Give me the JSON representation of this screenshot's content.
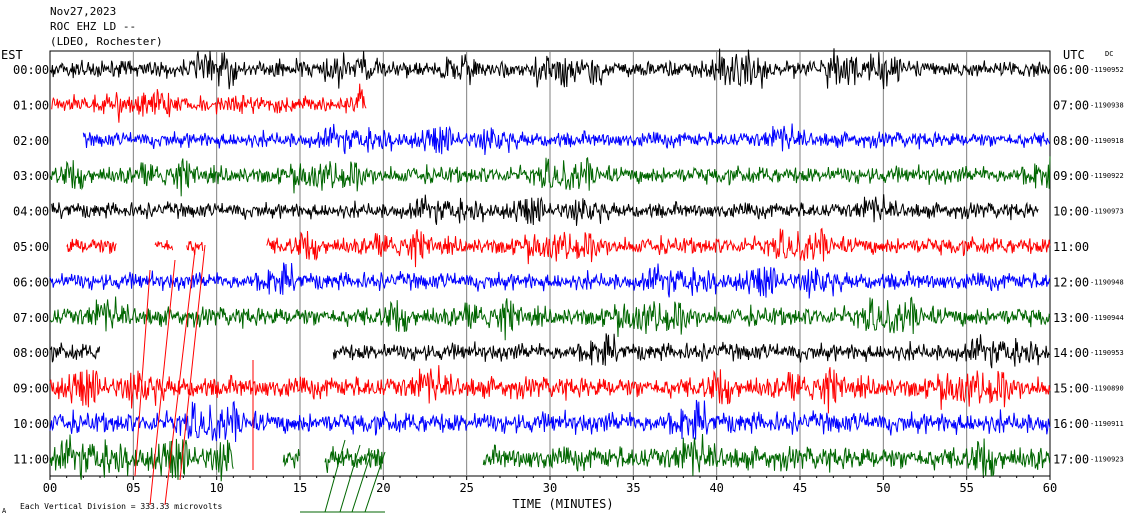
{
  "header": {
    "date": "Nov27,2023",
    "station": "ROC EHZ LD --",
    "network": "(LDEO, Rochester)"
  },
  "chart_data": {
    "type": "line",
    "title": "",
    "xlabel": "TIME (MINUTES)",
    "left_axis_label": "EST",
    "right_axis_label": "UTC",
    "dc_label": "DC",
    "xlim": [
      0,
      60
    ],
    "x_ticks": [
      "00",
      "05",
      "10",
      "15",
      "20",
      "25",
      "30",
      "35",
      "40",
      "45",
      "50",
      "55",
      "60"
    ],
    "grid": true,
    "scale_note": "Each Vertical Division = 333.33 microvolts",
    "corner_mark": "A",
    "trace_colors": [
      "#000000",
      "#ff0000",
      "#0000ff",
      "#006600"
    ],
    "rows": [
      {
        "est": "00:00",
        "utc": "06:00",
        "dc": "-1190952",
        "segments": [
          [
            0,
            60
          ]
        ],
        "amp": 0.9
      },
      {
        "est": "01:00",
        "utc": "07:00",
        "dc": "-1190938",
        "segments": [
          [
            0.1,
            19
          ]
        ],
        "amp": 0.9
      },
      {
        "est": "02:00",
        "utc": "08:00",
        "dc": "-1190918",
        "segments": [
          [
            2,
            60
          ]
        ],
        "amp": 0.8
      },
      {
        "est": "03:00",
        "utc": "09:00",
        "dc": "-1190922",
        "segments": [
          [
            0,
            60
          ]
        ],
        "amp": 0.9
      },
      {
        "est": "04:00",
        "utc": "10:00",
        "dc": "-1190973",
        "segments": [
          [
            0.1,
            59.3
          ]
        ],
        "amp": 0.8
      },
      {
        "est": "05:00",
        "utc": "11:00",
        "dc": "",
        "segments": [
          [
            1,
            4
          ],
          [
            6.3,
            7.4
          ],
          [
            8.2,
            9.2
          ],
          [
            13,
            60
          ]
        ],
        "amp": 0.9
      },
      {
        "est": "06:00",
        "utc": "12:00",
        "dc": "-1190948",
        "segments": [
          [
            0,
            60
          ]
        ],
        "amp": 0.9
      },
      {
        "est": "07:00",
        "utc": "13:00",
        "dc": "-1190944",
        "segments": [
          [
            0,
            60
          ]
        ],
        "amp": 1.0
      },
      {
        "est": "08:00",
        "utc": "14:00",
        "dc": "-1190953",
        "segments": [
          [
            0,
            3
          ],
          [
            17,
            60
          ]
        ],
        "amp": 0.9
      },
      {
        "est": "09:00",
        "utc": "15:00",
        "dc": "-1190890",
        "segments": [
          [
            0,
            60
          ]
        ],
        "amp": 1.1
      },
      {
        "est": "10:00",
        "utc": "16:00",
        "dc": "-1190911",
        "segments": [
          [
            0,
            60
          ]
        ],
        "amp": 1.1
      },
      {
        "est": "11:00",
        "utc": "17:00",
        "dc": "-1190923",
        "segments": [
          [
            0,
            11
          ],
          [
            14,
            15
          ],
          [
            16.5,
            20
          ],
          [
            26,
            60
          ]
        ],
        "amp": 1.2
      }
    ]
  }
}
